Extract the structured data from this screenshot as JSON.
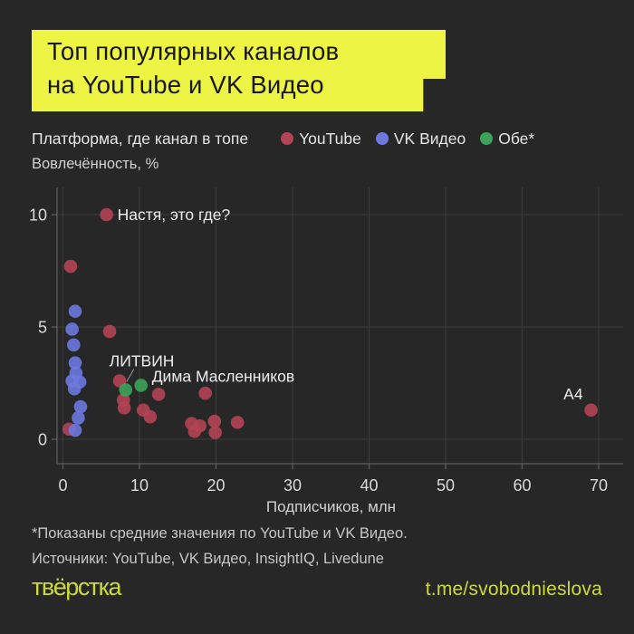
{
  "page": {
    "background": "#272727",
    "accent_yellow": "#edf444"
  },
  "header": {
    "title_line1": "Топ популярных каналов",
    "title_line2": "на YouTube и VK Видео"
  },
  "legend": {
    "label": "Платформа, где канал в топе",
    "items": [
      {
        "id": "youtube",
        "name": "YouTube",
        "color": "#b34454"
      },
      {
        "id": "vk-video",
        "name": "VK Видео",
        "color": "#6d79df"
      },
      {
        "id": "both",
        "name": "Обе*",
        "color": "#3da35a"
      }
    ]
  },
  "chart_data": {
    "type": "scatter",
    "xlabel": "Подписчиков, млн",
    "ylabel": "Вовлечённость, %",
    "xlim": [
      0,
      70
    ],
    "ylim": [
      0,
      10
    ],
    "xticks": [
      0,
      10,
      20,
      30,
      40,
      50,
      60,
      70
    ],
    "yticks": [
      0,
      5,
      10
    ],
    "grid": true,
    "legend_position": "top",
    "series": [
      {
        "name": "YouTube",
        "color": "#b34454",
        "points": [
          [
            1.0,
            7.7
          ],
          [
            5.7,
            10.0
          ],
          [
            6.1,
            4.8
          ],
          [
            0.8,
            0.45
          ],
          [
            7.4,
            2.6
          ],
          [
            7.9,
            1.75
          ],
          [
            8.0,
            1.4
          ],
          [
            10.5,
            1.3
          ],
          [
            11.4,
            1.0
          ],
          [
            12.5,
            2.0
          ],
          [
            16.8,
            0.7
          ],
          [
            17.2,
            0.35
          ],
          [
            17.9,
            0.6
          ],
          [
            18.6,
            2.05
          ],
          [
            19.8,
            0.8
          ],
          [
            19.9,
            0.3
          ],
          [
            22.8,
            0.75
          ],
          [
            69.0,
            1.3
          ]
        ]
      },
      {
        "name": "VK Видео",
        "color": "#6d79df",
        "points": [
          [
            1.6,
            5.7
          ],
          [
            1.2,
            4.9
          ],
          [
            1.4,
            4.2
          ],
          [
            1.6,
            3.4
          ],
          [
            1.7,
            2.95
          ],
          [
            1.2,
            2.6
          ],
          [
            2.2,
            2.55
          ],
          [
            1.5,
            2.25
          ],
          [
            2.3,
            1.45
          ],
          [
            2.0,
            0.95
          ],
          [
            1.6,
            0.4
          ]
        ]
      },
      {
        "name": "Обе*",
        "color": "#3da35a",
        "points": [
          [
            8.2,
            2.2
          ],
          [
            10.2,
            2.4
          ]
        ]
      }
    ],
    "annotations": [
      {
        "text": "Настя, это где?",
        "x": 5.7,
        "y": 10.0,
        "placement": "right"
      },
      {
        "text": "ЛИТВИН",
        "x": 8.2,
        "y": 2.2,
        "placement": "leader-above"
      },
      {
        "text": "Дима Масленников",
        "x": 10.2,
        "y": 2.4,
        "placement": "right-up"
      },
      {
        "text": "A4",
        "x": 69.0,
        "y": 1.3,
        "placement": "above-left"
      }
    ]
  },
  "footnotes": {
    "star": "*Показаны средние значения по YouTube и VK Видео.",
    "sources": "Источники: YouTube, VK Видео, InsightIQ, Livedune"
  },
  "footer": {
    "brand": "твёрстка",
    "link": "t.me/svobodnieslova"
  }
}
